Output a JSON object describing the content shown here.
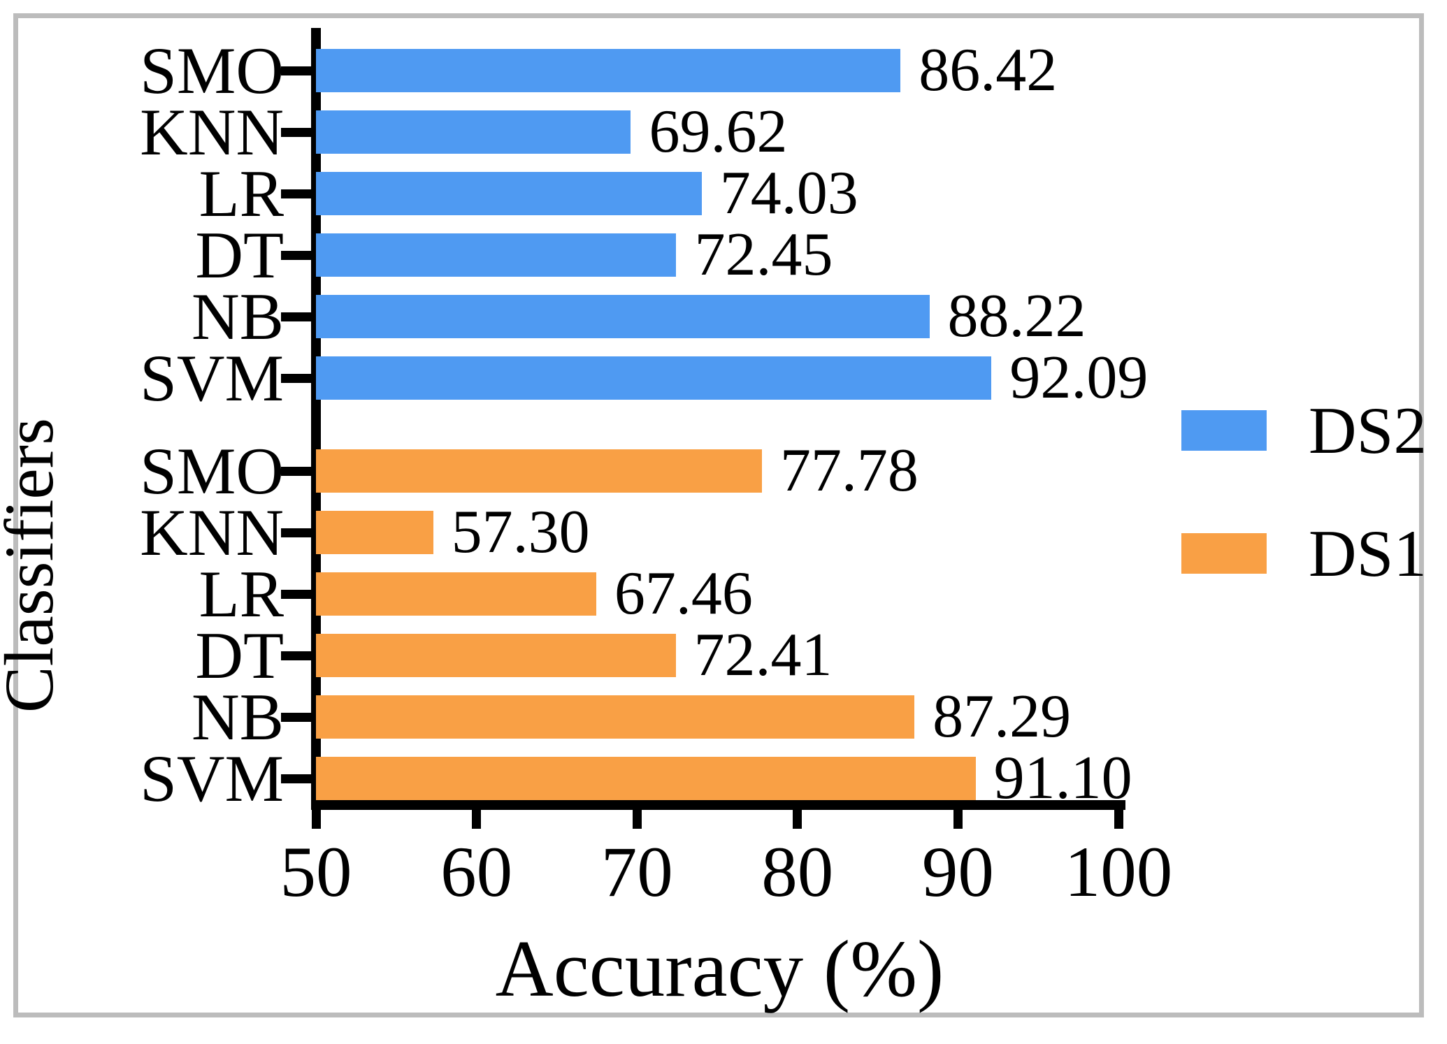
{
  "chart_data": {
    "type": "bar",
    "orientation": "horizontal",
    "xlabel": "Accuracy (%)",
    "ylabel": "Classifiers",
    "xlim": [
      50,
      100
    ],
    "x_ticks": [
      "50",
      "60",
      "70",
      "80",
      "90",
      "100"
    ],
    "grid": false,
    "legend_position": "right",
    "categories": [
      "SMO",
      "KNN",
      "LR",
      "DT",
      "NB",
      "SVM"
    ],
    "series": [
      {
        "name": "DS2",
        "color": "#4f9af2",
        "values": [
          86.42,
          69.62,
          74.03,
          72.45,
          88.22,
          92.09
        ],
        "value_labels": [
          "86.42",
          "69.62",
          "74.03",
          "72.45",
          "88.22",
          "92.09"
        ]
      },
      {
        "name": "DS1",
        "color": "#f9a045",
        "values": [
          77.78,
          57.3,
          67.46,
          72.41,
          87.29,
          91.1
        ],
        "value_labels": [
          "77.78",
          "57.30",
          "67.46",
          "72.41",
          "87.29",
          "91.10"
        ]
      }
    ],
    "legend": [
      {
        "label": "DS2",
        "color": "#4f9af2"
      },
      {
        "label": "DS1",
        "color": "#f9a045"
      }
    ]
  },
  "frame": {
    "border_color": "#bcbcbc",
    "background": "#ffffff"
  }
}
